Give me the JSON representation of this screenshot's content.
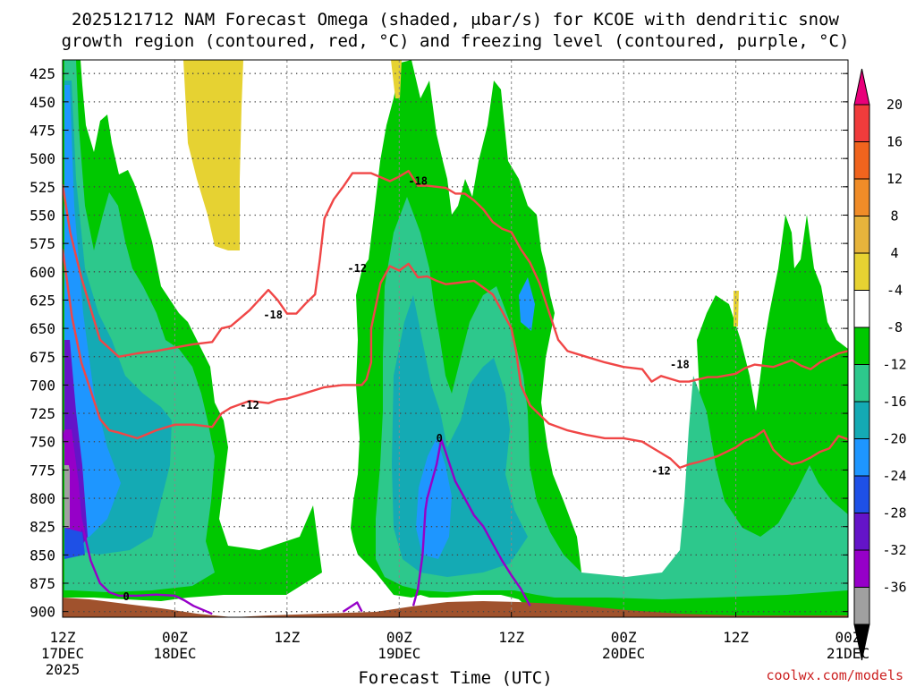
{
  "chart_data": {
    "type": "heatmap",
    "title_line1": "2025121712 NAM Forecast Omega (shaded, μbar/s) for KCOE with dendritic snow",
    "title_line2": "growth region (contoured, red, °C) and freezing level (contoured, purple, °C)",
    "xlabel": "Forecast Time (UTC)",
    "credit": "coolwx.com/models",
    "y_ticks": [
      425,
      450,
      475,
      500,
      525,
      550,
      575,
      600,
      625,
      650,
      675,
      700,
      725,
      750,
      775,
      800,
      825,
      850,
      875,
      900
    ],
    "ylim": [
      413,
      905
    ],
    "y_unit": "hPa",
    "x_range_hours": [
      0,
      84
    ],
    "x_ticks": [
      {
        "hour": 0,
        "top": "12Z",
        "bottom": "17DEC",
        "extra": "2025"
      },
      {
        "hour": 12,
        "top": "00Z",
        "bottom": "18DEC",
        "extra": ""
      },
      {
        "hour": 24,
        "top": "12Z",
        "bottom": "",
        "extra": ""
      },
      {
        "hour": 36,
        "top": "00Z",
        "bottom": "19DEC",
        "extra": ""
      },
      {
        "hour": 48,
        "top": "12Z",
        "bottom": "",
        "extra": ""
      },
      {
        "hour": 60,
        "top": "00Z",
        "bottom": "20DEC",
        "extra": ""
      },
      {
        "hour": 72,
        "top": "12Z",
        "bottom": "",
        "extra": ""
      },
      {
        "hour": 84,
        "top": "00Z",
        "bottom": "21DEC",
        "extra": ""
      }
    ],
    "grid": true,
    "colorbar": {
      "labels": [
        "20",
        "16",
        "12",
        "8",
        "4",
        "-4",
        "-8",
        "-12",
        "-16",
        "-20",
        "-24",
        "-28",
        "-32",
        "-36"
      ],
      "colors": [
        "#e8007a",
        "#f03c3c",
        "#f0641e",
        "#f08c28",
        "#e6b43c",
        "#e6d232",
        "#ffffff",
        "#00c800",
        "#2dc88c",
        "#14aab4",
        "#1e96ff",
        "#1e50e6",
        "#6414c8",
        "#9600c8",
        "#a0a0a0",
        "#000000"
      ]
    },
    "shading_colors": {
      "lt_minus4": "#00c800",
      "lt_minus8": "#2dc88c",
      "lt_minus12": "#14aab4",
      "lt_minus16": "#1e96ff",
      "lt_minus20": "#1e50e6",
      "lt_minus24": "#6414c8",
      "lt_minus28": "#9600c8",
      "lt_minus32": "#a0a0a0",
      "gt_4": "#e6d232",
      "terrain": "#a0522d"
    },
    "contour_labels": {
      "red": [
        "-18",
        "-12",
        "-18",
        "-12",
        "-18",
        "-12"
      ],
      "purple": [
        "0",
        "0"
      ]
    },
    "series": [
      {
        "name": "-18",
        "color": "#f04646",
        "points": [
          [
            0,
            523
          ],
          [
            0.8,
            565
          ],
          [
            2,
            605
          ],
          [
            4,
            660
          ],
          [
            6,
            675
          ],
          [
            8,
            672
          ],
          [
            10,
            670
          ],
          [
            12,
            667
          ],
          [
            14,
            664
          ],
          [
            16,
            662
          ],
          [
            17,
            650
          ],
          [
            18,
            648
          ],
          [
            19,
            641
          ],
          [
            20,
            634
          ],
          [
            21,
            625
          ],
          [
            22,
            616
          ],
          [
            23,
            625
          ],
          [
            24,
            637
          ],
          [
            25,
            637
          ],
          [
            26,
            628
          ],
          [
            27,
            620
          ],
          [
            27.5,
            590
          ],
          [
            28,
            553
          ],
          [
            29,
            536
          ],
          [
            30,
            525
          ],
          [
            31,
            513
          ],
          [
            33,
            513
          ],
          [
            35,
            520
          ],
          [
            36,
            516
          ],
          [
            37,
            511
          ],
          [
            38,
            524
          ],
          [
            39,
            524
          ],
          [
            41,
            526
          ],
          [
            42,
            531
          ],
          [
            43,
            531
          ],
          [
            44,
            537
          ],
          [
            45,
            545
          ],
          [
            46,
            556
          ],
          [
            47,
            562
          ],
          [
            48,
            565
          ],
          [
            49,
            580
          ],
          [
            50,
            592
          ],
          [
            51,
            610
          ],
          [
            52,
            635
          ],
          [
            53,
            660
          ],
          [
            54,
            670
          ],
          [
            56,
            675
          ],
          [
            58,
            680
          ],
          [
            60,
            684
          ],
          [
            62,
            686
          ],
          [
            63,
            697
          ],
          [
            64,
            692
          ],
          [
            66,
            697
          ],
          [
            67,
            697
          ],
          [
            69,
            693
          ],
          [
            70,
            693
          ],
          [
            72,
            690
          ],
          [
            73,
            685
          ],
          [
            74,
            682
          ],
          [
            76,
            684
          ],
          [
            78,
            678
          ],
          [
            79,
            683
          ],
          [
            80,
            686
          ],
          [
            81,
            680
          ],
          [
            83,
            672
          ],
          [
            84,
            670
          ]
        ]
      },
      {
        "name": "-12",
        "color": "#f04646",
        "points": [
          [
            0,
            580
          ],
          [
            1,
            640
          ],
          [
            2,
            680
          ],
          [
            3,
            705
          ],
          [
            4,
            730
          ],
          [
            5,
            740
          ],
          [
            6,
            742
          ],
          [
            8,
            747
          ],
          [
            10,
            740
          ],
          [
            12,
            735
          ],
          [
            14,
            735
          ],
          [
            16,
            737
          ],
          [
            17,
            725
          ],
          [
            18,
            720
          ],
          [
            20,
            714
          ],
          [
            22,
            716
          ],
          [
            23,
            713
          ],
          [
            24,
            712
          ],
          [
            26,
            707
          ],
          [
            28,
            702
          ],
          [
            30,
            700
          ],
          [
            32,
            700
          ],
          [
            32.5,
            695
          ],
          [
            33,
            680
          ],
          [
            33,
            650
          ],
          [
            34,
            610
          ],
          [
            35,
            595
          ],
          [
            36,
            599
          ],
          [
            37,
            593
          ],
          [
            38,
            605
          ],
          [
            39,
            604
          ],
          [
            40,
            608
          ],
          [
            41,
            611
          ],
          [
            42,
            610
          ],
          [
            44,
            608
          ],
          [
            46,
            620
          ],
          [
            47,
            635
          ],
          [
            48,
            650
          ],
          [
            48.5,
            670
          ],
          [
            49,
            700
          ],
          [
            50,
            718
          ],
          [
            52,
            734
          ],
          [
            54,
            740
          ],
          [
            56,
            744
          ],
          [
            58,
            747
          ],
          [
            60,
            747
          ],
          [
            62,
            750
          ],
          [
            63,
            755
          ],
          [
            64,
            760
          ],
          [
            65,
            765
          ],
          [
            66,
            773
          ],
          [
            67,
            770
          ],
          [
            68,
            768
          ],
          [
            70,
            763
          ],
          [
            72,
            755
          ],
          [
            73,
            749
          ],
          [
            74,
            746
          ],
          [
            75,
            740
          ],
          [
            76,
            757
          ],
          [
            77,
            765
          ],
          [
            78,
            770
          ],
          [
            79,
            768
          ],
          [
            80,
            764
          ],
          [
            81,
            759
          ],
          [
            82,
            756
          ],
          [
            83,
            745
          ],
          [
            84,
            748
          ]
        ]
      },
      {
        "name": "0",
        "color": "#9600c8",
        "points": [
          [
            0,
            740
          ],
          [
            1,
            780
          ],
          [
            2,
            820
          ],
          [
            3,
            855
          ],
          [
            4,
            875
          ],
          [
            5,
            883
          ],
          [
            6,
            886
          ],
          [
            8,
            886
          ],
          [
            10,
            885
          ],
          [
            12,
            886
          ],
          [
            13,
            890
          ],
          [
            14,
            895
          ],
          [
            16,
            902
          ]
        ]
      },
      {
        "name": "0",
        "color": "#9600c8",
        "points": [
          [
            37.5,
            895
          ],
          [
            38,
            880
          ],
          [
            38.5,
            850
          ],
          [
            38.8,
            810
          ],
          [
            39,
            800
          ],
          [
            40,
            770
          ],
          [
            40.5,
            748
          ],
          [
            41,
            760
          ],
          [
            42,
            785
          ],
          [
            43,
            800
          ],
          [
            44,
            815
          ],
          [
            45,
            825
          ],
          [
            46,
            840
          ],
          [
            47,
            855
          ],
          [
            48,
            868
          ],
          [
            49,
            880
          ],
          [
            50,
            895
          ]
        ]
      },
      {
        "name": "0",
        "color": "#9600c8",
        "points": [
          [
            30,
            900
          ],
          [
            31.5,
            892
          ],
          [
            32,
            900
          ]
        ]
      }
    ]
  }
}
